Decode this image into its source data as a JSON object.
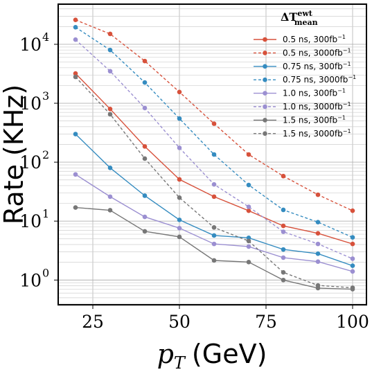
{
  "chart_data": {
    "type": "line",
    "xlabel": {
      "var": "p",
      "sub": "T",
      "unit": "(GeV)"
    },
    "ylabel": "Rate (KHz)",
    "xlim": [
      15,
      104
    ],
    "ylim": [
      0.38,
      48000
    ],
    "yscale": "log",
    "grid": true,
    "grid_minor": true,
    "legend_position": "top-right",
    "legend_title": {
      "main": "ΔT",
      "sup": "ewt",
      "sub": "mean"
    },
    "x_ticks": [
      25,
      50,
      75,
      100
    ],
    "y_ticks": [
      {
        "value": 1,
        "base": "10",
        "exp": "0"
      },
      {
        "value": 10,
        "base": "10",
        "exp": "1"
      },
      {
        "value": 100,
        "base": "10",
        "exp": "2"
      },
      {
        "value": 1000,
        "base": "10",
        "exp": "3"
      },
      {
        "value": 10000,
        "base": "10",
        "exp": "4"
      }
    ],
    "x": [
      20,
      30,
      40,
      50,
      60,
      70,
      80,
      90,
      100
    ],
    "series": [
      {
        "name": "0.5 ns, 300fb",
        "name_sup": "−1",
        "color": "#d7513b",
        "dashed": false,
        "values": [
          3200,
          800,
          185,
          51,
          26,
          15,
          8.3,
          6.2,
          4.1
        ]
      },
      {
        "name": "0.5 ns, 3000fb",
        "name_sup": "−1",
        "color": "#d7513b",
        "dashed": true,
        "values": [
          26000,
          15000,
          5200,
          1550,
          450,
          135,
          58,
          28,
          15
        ]
      },
      {
        "name": "0.75 ns, 300fb",
        "name_sup": "−1",
        "color": "#358cc0",
        "dashed": false,
        "values": [
          300,
          80,
          27,
          10.5,
          5.7,
          5.2,
          3.3,
          2.8,
          1.75
        ]
      },
      {
        "name": "0.75 ns, 3000fb",
        "name_sup": "−1",
        "color": "#358cc0",
        "dashed": true,
        "values": [
          19500,
          8000,
          2250,
          550,
          135,
          41,
          15.5,
          9.6,
          5.3
        ]
      },
      {
        "name": "1.0 ns, 300fb",
        "name_sup": "−1",
        "color": "#9b8fd1",
        "dashed": false,
        "values": [
          62,
          26,
          11.8,
          7.6,
          4.1,
          3.7,
          2.4,
          2.05,
          1.4
        ]
      },
      {
        "name": "1.0 ns, 3000fb",
        "name_sup": "−1",
        "color": "#9b8fd1",
        "dashed": true,
        "values": [
          12000,
          3500,
          830,
          175,
          42,
          17.5,
          6.6,
          4.1,
          2.3
        ]
      },
      {
        "name": "1.5 ns, 300fb",
        "name_sup": "−1",
        "color": "#777777",
        "dashed": false,
        "values": [
          17,
          15.3,
          6.7,
          5.4,
          2.15,
          2.02,
          1.0,
          0.73,
          0.7
        ]
      },
      {
        "name": "1.5 ns, 3000fb",
        "name_sup": "−1",
        "color": "#777777",
        "dashed": true,
        "values": [
          2800,
          650,
          115,
          25,
          7.8,
          4.6,
          1.35,
          0.81,
          0.74
        ]
      }
    ]
  }
}
